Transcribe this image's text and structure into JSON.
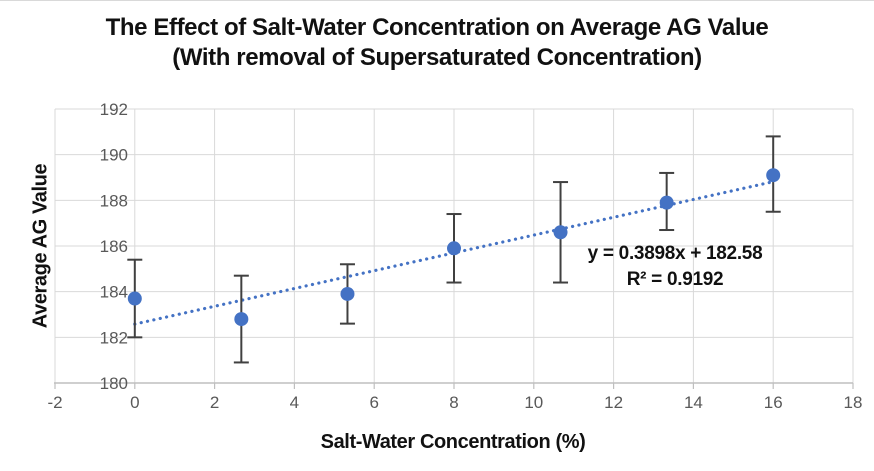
{
  "chart": {
    "title_line1": "The Effect of Salt-Water Concentration on Average AG Value",
    "title_line2": "(With removal of Supersaturated Concentration)",
    "equation_line1": "y = 0.3898x + 182.58",
    "equation_line2": "R² = 0.9192",
    "x_axis_title": "Salt-Water Concentration (%)",
    "y_axis_title": "Average AG Value"
  },
  "chart_data": {
    "type": "scatter",
    "title": "The Effect of Salt-Water Concentration on Average AG Value (With removal of Supersaturated Concentration)",
    "xlabel": "Salt-Water Concentration (%)",
    "ylabel": "Average AG Value",
    "xlim": [
      -2,
      18
    ],
    "ylim": [
      180,
      192
    ],
    "x_ticks": [
      -2,
      0,
      2,
      4,
      6,
      8,
      10,
      12,
      14,
      16,
      18
    ],
    "y_ticks": [
      180,
      182,
      184,
      186,
      188,
      190,
      192
    ],
    "grid": true,
    "legend": "none",
    "series": [
      {
        "name": "Average AG Value",
        "marker": "circle",
        "points": [
          {
            "x": 0,
            "y": 183.7,
            "err_low": 182.0,
            "err_high": 185.4
          },
          {
            "x": 2.67,
            "y": 182.8,
            "err_low": 180.9,
            "err_high": 184.7
          },
          {
            "x": 5.33,
            "y": 183.9,
            "err_low": 182.6,
            "err_high": 185.2
          },
          {
            "x": 8,
            "y": 185.9,
            "err_low": 184.4,
            "err_high": 187.4
          },
          {
            "x": 10.67,
            "y": 186.6,
            "err_low": 184.4,
            "err_high": 188.8
          },
          {
            "x": 13.33,
            "y": 187.9,
            "err_low": 186.7,
            "err_high": 189.2
          },
          {
            "x": 16,
            "y": 189.1,
            "err_low": 187.5,
            "err_high": 190.8
          }
        ]
      }
    ],
    "trendline": {
      "type": "linear",
      "slope": 0.3898,
      "intercept": 182.58,
      "r_squared": 0.9192,
      "x_start": 0,
      "x_end": 16,
      "style": "dotted"
    },
    "annotations": [
      "y = 0.3898x + 182.58",
      "R² = 0.9192"
    ],
    "colors": {
      "point": "#4472C4",
      "trendline": "#4472C4",
      "error_bar": "#404040",
      "gridline": "#D9D9D9",
      "axis_line": "#BFBFBF",
      "tick_label": "#595959",
      "text": "#111111"
    }
  }
}
